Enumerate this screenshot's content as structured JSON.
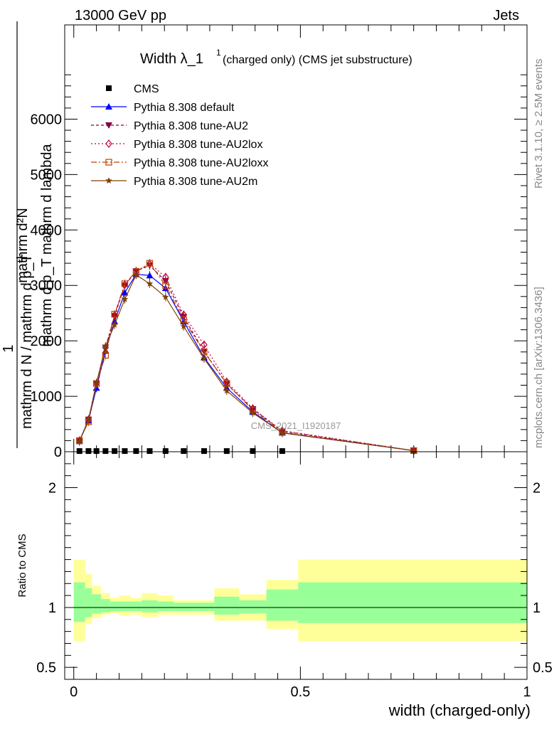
{
  "header": {
    "energy_label": "13000 GeV pp",
    "category_label": "Jets"
  },
  "side": {
    "rivet_label": "Rivet 3.1.10, ≥ 2.5M events",
    "mcplots_label": "mcplots.cern.ch [arXiv:1306.3436]"
  },
  "colors": {
    "cms": "#000000",
    "default": "#0000ff",
    "au2": "#800040",
    "au2lox": "#c00040",
    "au2loxx": "#c04000",
    "au2m": "#804000",
    "band_inner": "#99ff99",
    "band_outer": "#ffff99"
  },
  "chart_data": [
    {
      "type": "line",
      "panel": "main",
      "title": "Width λ_1¹ (charged only) (CMS jet substructure)",
      "title_main": "Width λ_1",
      "title_sup": "1",
      "title_sub": "(charged only) (CMS jet substructure)",
      "ylabel_line1": "mathrm d²N",
      "ylabel_line2": "mathrm d p_T mathrm d lambda",
      "ylabel_line3": "1",
      "ylabel_line4": "mathrm d N / mathrm d p_T",
      "watermark": "CMS_2021_I1920187",
      "xlim": [
        -0.02,
        1.0
      ],
      "ylim": [
        0,
        7700
      ],
      "yticks": [
        0,
        1000,
        2000,
        3000,
        4000,
        5000,
        6000
      ],
      "ytick_labels": [
        "0",
        "1000",
        "2000",
        "3000",
        "4000",
        "5000",
        "6000"
      ],
      "legend_position": "top-left",
      "x": [
        0.0125,
        0.0325,
        0.05,
        0.07,
        0.09,
        0.1125,
        0.1375,
        0.1675,
        0.2025,
        0.2425,
        0.2875,
        0.3375,
        0.395,
        0.46,
        0.75
      ],
      "series": [
        {
          "name": "CMS",
          "key": "cms",
          "marker": "square",
          "values": [
            12,
            12,
            12,
            12,
            12,
            12,
            12,
            12,
            12,
            12,
            12,
            12,
            12,
            12,
            12
          ]
        },
        {
          "name": "Pythia 8.308 default",
          "key": "default",
          "marker": "triangle-up",
          "dash": "",
          "values": [
            190,
            560,
            1150,
            1820,
            2350,
            2870,
            3200,
            3180,
            2950,
            2350,
            1700,
            1150,
            720,
            340,
            20
          ]
        },
        {
          "name": "Pythia 8.308 tune-AU2",
          "key": "au2",
          "marker": "triangle-down",
          "dash": "4,3",
          "values": [
            190,
            580,
            1230,
            1880,
            2450,
            3000,
            3260,
            3360,
            3080,
            2430,
            1810,
            1220,
            770,
            370,
            20
          ]
        },
        {
          "name": "Pythia 8.308 tune-AU2lox",
          "key": "au2lox",
          "marker": "diamond",
          "dash": "2,3",
          "values": [
            200,
            580,
            1230,
            1880,
            2460,
            3010,
            3250,
            3390,
            3150,
            2470,
            1930,
            1260,
            780,
            380,
            20
          ]
        },
        {
          "name": "Pythia 8.308 tune-AU2loxx",
          "key": "au2loxx",
          "marker": "square-open",
          "dash": "8,3,2,3",
          "values": [
            200,
            540,
            1230,
            1740,
            2480,
            3030,
            3250,
            3400,
            3000,
            2380,
            1800,
            1230,
            750,
            350,
            20
          ]
        },
        {
          "name": "Pythia 8.308 tune-AU2m",
          "key": "au2m",
          "marker": "star",
          "dash": "",
          "values": [
            190,
            580,
            1240,
            1900,
            2290,
            2750,
            3190,
            3030,
            2790,
            2260,
            1680,
            1100,
            700,
            340,
            20
          ]
        }
      ]
    },
    {
      "type": "area",
      "panel": "ratio",
      "ylabel": "Ratio to CMS",
      "xlabel": "width (charged-only)",
      "xlim": [
        -0.02,
        1.0
      ],
      "xticks": [
        0,
        0.5,
        1
      ],
      "xtick_labels": [
        "0",
        "0.5",
        "1"
      ],
      "ylim": [
        0.4,
        2.3
      ],
      "ytick_labels": [
        {
          "v": 0.5,
          "t": "0.5"
        },
        {
          "v": 1,
          "t": "1"
        },
        {
          "v": 2,
          "t": "2"
        }
      ],
      "bin_edges": [
        0,
        0.025,
        0.04,
        0.06,
        0.08,
        0.1,
        0.125,
        0.15,
        0.185,
        0.22,
        0.265,
        0.31,
        0.365,
        0.425,
        0.495,
        1.0
      ],
      "outer_low": [
        0.72,
        0.86,
        0.91,
        0.94,
        0.95,
        0.93,
        0.94,
        0.92,
        0.94,
        0.94,
        0.94,
        0.89,
        0.89,
        0.82,
        0.72
      ],
      "outer_high": [
        1.4,
        1.28,
        1.18,
        1.12,
        1.08,
        1.1,
        1.08,
        1.12,
        1.1,
        1.06,
        1.06,
        1.16,
        1.11,
        1.23,
        1.4
      ],
      "inner_low": [
        0.88,
        0.92,
        0.95,
        0.96,
        0.97,
        0.97,
        0.97,
        0.96,
        0.97,
        0.97,
        0.97,
        0.94,
        0.95,
        0.89,
        0.87
      ],
      "inner_high": [
        1.21,
        1.16,
        1.11,
        1.07,
        1.05,
        1.05,
        1.05,
        1.06,
        1.05,
        1.04,
        1.04,
        1.09,
        1.06,
        1.15,
        1.21
      ]
    }
  ]
}
